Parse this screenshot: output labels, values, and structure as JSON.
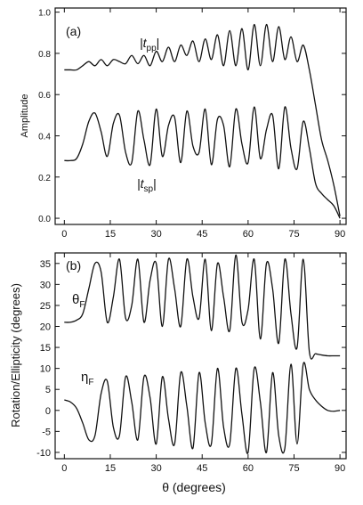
{
  "chart_data": [
    {
      "panel_label": "(a)",
      "type": "line",
      "xlabel": "",
      "ylabel": "Amplitude",
      "xlim": [
        -3,
        92
      ],
      "ylim": [
        -0.03,
        1.02
      ],
      "xticks": [
        0,
        15,
        30,
        45,
        60,
        75,
        90
      ],
      "yticks": [
        0.0,
        0.2,
        0.4,
        0.6,
        0.8,
        1.0
      ],
      "ytick_labels": [
        "0.0",
        "0.2",
        "0.4",
        "0.6",
        "0.8",
        "1.0"
      ],
      "annotations": [
        {
          "main": "|t",
          "sub": "pp",
          "tail": "|"
        },
        {
          "main": "|t",
          "sub": "sp",
          "tail": "|"
        }
      ],
      "series": [
        {
          "x": [
            0,
            2,
            4,
            6,
            8,
            10,
            12,
            14,
            16,
            18,
            20,
            22,
            24,
            26,
            28,
            30,
            32,
            34,
            36,
            38,
            40,
            42,
            44,
            46,
            48,
            50,
            52,
            54,
            56,
            58,
            60,
            62,
            64,
            66,
            68,
            70,
            72,
            74,
            76,
            78,
            80,
            82,
            84,
            86,
            88,
            90
          ],
          "values": [
            0.72,
            0.72,
            0.72,
            0.74,
            0.76,
            0.74,
            0.77,
            0.74,
            0.77,
            0.76,
            0.75,
            0.79,
            0.75,
            0.79,
            0.74,
            0.81,
            0.76,
            0.83,
            0.76,
            0.84,
            0.79,
            0.86,
            0.76,
            0.87,
            0.77,
            0.89,
            0.74,
            0.91,
            0.74,
            0.92,
            0.72,
            0.94,
            0.74,
            0.94,
            0.76,
            0.93,
            0.77,
            0.88,
            0.76,
            0.84,
            0.72,
            0.55,
            0.38,
            0.28,
            0.16,
            0.01
          ]
        },
        {
          "x": [
            0,
            2,
            4,
            6,
            8,
            10,
            12,
            14,
            16,
            18,
            20,
            22,
            24,
            26,
            28,
            30,
            32,
            34,
            36,
            38,
            40,
            42,
            44,
            46,
            48,
            50,
            52,
            54,
            56,
            58,
            60,
            62,
            64,
            66,
            68,
            70,
            72,
            74,
            76,
            78,
            80,
            82,
            84,
            86,
            88,
            90
          ],
          "values": [
            0.28,
            0.28,
            0.29,
            0.36,
            0.47,
            0.51,
            0.42,
            0.3,
            0.46,
            0.5,
            0.32,
            0.27,
            0.52,
            0.38,
            0.26,
            0.53,
            0.3,
            0.45,
            0.49,
            0.27,
            0.52,
            0.35,
            0.32,
            0.53,
            0.26,
            0.48,
            0.45,
            0.25,
            0.53,
            0.36,
            0.27,
            0.54,
            0.29,
            0.43,
            0.5,
            0.24,
            0.54,
            0.34,
            0.24,
            0.47,
            0.34,
            0.17,
            0.12,
            0.09,
            0.06,
            0.0
          ]
        }
      ]
    },
    {
      "panel_label": "(b)",
      "type": "line",
      "xlabel": "θ (degrees)",
      "ylabel": "Rotation/Ellipticity (degrees)",
      "xlim": [
        -3,
        92
      ],
      "ylim": [
        -11.5,
        37.5
      ],
      "xticks": [
        0,
        15,
        30,
        45,
        60,
        75,
        90
      ],
      "yticks": [
        -10,
        -5,
        0,
        5,
        10,
        15,
        20,
        25,
        30,
        35
      ],
      "annotations": [
        {
          "main": "θ",
          "sub": "F"
        },
        {
          "main": "η",
          "sub": "F"
        }
      ],
      "series": [
        {
          "x": [
            0,
            2,
            4,
            6,
            8,
            10,
            12,
            14,
            16,
            18,
            20,
            22,
            24,
            26,
            28,
            30,
            32,
            34,
            36,
            38,
            40,
            42,
            44,
            46,
            48,
            50,
            52,
            54,
            56,
            58,
            60,
            62,
            64,
            66,
            68,
            70,
            72,
            74,
            76,
            78,
            80,
            82,
            84,
            86,
            88,
            90
          ],
          "values": [
            21,
            21,
            21.5,
            23,
            29,
            35,
            33,
            21,
            27,
            36,
            22,
            25,
            36,
            21,
            31,
            35,
            20,
            36,
            29,
            20,
            36,
            27,
            22,
            36,
            19,
            35,
            27,
            19,
            37,
            21,
            24,
            36,
            17,
            35,
            29,
            16,
            36,
            23,
            15,
            36,
            14,
            13.5,
            13.2,
            13,
            13,
            13
          ]
        },
        {
          "x": [
            0,
            2,
            4,
            6,
            8,
            10,
            12,
            14,
            16,
            18,
            20,
            22,
            24,
            26,
            28,
            30,
            32,
            34,
            36,
            38,
            40,
            42,
            44,
            46,
            48,
            50,
            52,
            54,
            56,
            58,
            60,
            62,
            64,
            66,
            68,
            70,
            72,
            74,
            76,
            78,
            80,
            82,
            84,
            86,
            88,
            90
          ],
          "values": [
            2.5,
            2,
            0.5,
            -3,
            -7,
            -6,
            4,
            7,
            -4,
            -6,
            8,
            2,
            -7,
            8,
            3,
            -8,
            8,
            -2,
            -8,
            9,
            1,
            -9,
            9,
            -3,
            -8,
            10,
            -4,
            -8,
            10,
            -1,
            -10,
            10,
            2,
            -10,
            9,
            -6,
            -9,
            11,
            -8,
            11,
            5,
            2.5,
            1,
            0,
            -0.2,
            0
          ]
        }
      ]
    }
  ]
}
